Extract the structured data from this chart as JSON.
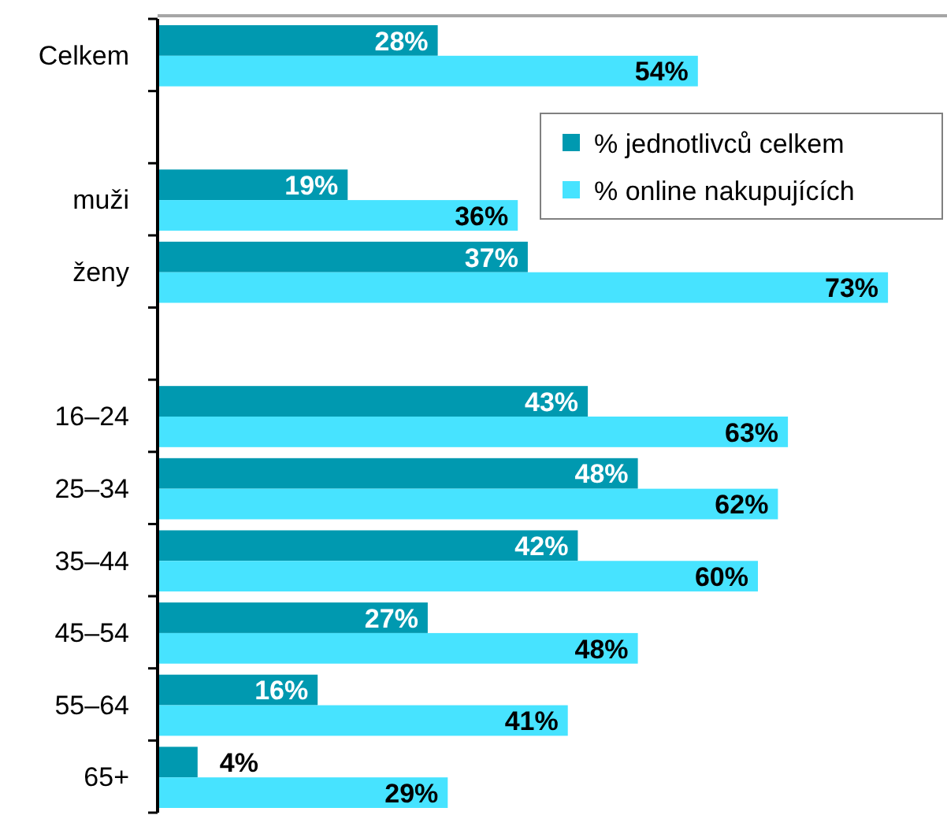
{
  "chart_data": {
    "type": "bar",
    "orientation": "horizontal",
    "categories": [
      "Celkem",
      null,
      "muži",
      "ženy",
      null,
      "16–24",
      "25–34",
      "35–44",
      "45–54",
      "55–64",
      "65+"
    ],
    "series": [
      {
        "name": "% jednotlivců celkem",
        "color": "#0099b0",
        "values": [
          28,
          null,
          19,
          37,
          null,
          43,
          48,
          42,
          27,
          16,
          4
        ],
        "value_labels": [
          "28%",
          null,
          "19%",
          "37%",
          null,
          "43%",
          "48%",
          "42%",
          "27%",
          "16%",
          "4%"
        ]
      },
      {
        "name": "% online nakupujících",
        "color": "#47e3ff",
        "values": [
          54,
          null,
          36,
          73,
          null,
          63,
          62,
          60,
          48,
          41,
          29
        ],
        "value_labels": [
          "54%",
          null,
          "36%",
          "73%",
          null,
          "63%",
          "62%",
          "60%",
          "48%",
          "41%",
          "29%"
        ]
      }
    ],
    "legend": "top right"
  }
}
